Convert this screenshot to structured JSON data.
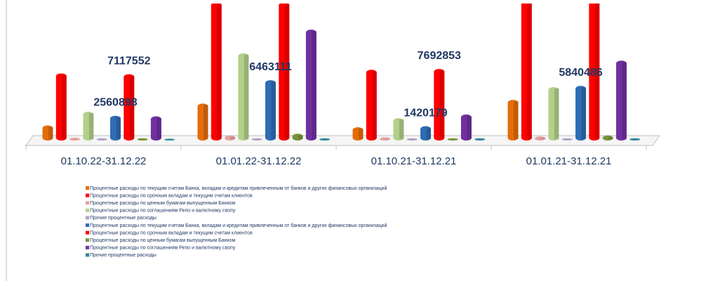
{
  "chart_data": {
    "type": "bar3d",
    "categories": [
      "01.10.22-31.12.22",
      "01.01.22-31.12.22",
      "01.10.21-31.12.21",
      "01.01.21-31.12.21"
    ],
    "series": [
      {
        "name": "Процентные расходы по текущим счетам Банка, вкладам и кредитам привлеченным от банков и других финансовых организаций",
        "color": "#e46c0a",
        "values": [
          1500000,
          3900000,
          1300000,
          4300000
        ]
      },
      {
        "name": "Процентные расходы  по срочным вкладам и текущим счетам клиентов",
        "color": "#ff0000",
        "values": [
          7200000,
          15000000,
          7600000,
          16000000
        ]
      },
      {
        "name": "Процентные расходы  по ценным бумагам выпущенным Банком",
        "color": "#e6a0a0",
        "values": [
          150000,
          400000,
          200000,
          300000
        ]
      },
      {
        "name": "Процентные расходы по соглашениям Репо и валютному свопу",
        "color": "#b3d08a",
        "values": [
          3000000,
          9400000,
          2300000,
          5700000
        ]
      },
      {
        "name": "Прочие процентные расходы",
        "color": "#b3a2c7",
        "values": [
          100000,
          100000,
          100000,
          100000
        ]
      },
      {
        "name": "Процентные расходы по текущим счетам Банка, вкладам и кредитам привлеченным от банков и других финансовых организаций",
        "color": "#2e6db4",
        "values": [
          2560898,
          6463111,
          1420179,
          5840486
        ],
        "data_labels": [
          true,
          true,
          true,
          true
        ]
      },
      {
        "name": "Процентные расходы  по срочным вкладам и текущим счетам клиентов",
        "color": "#ff0000",
        "values": [
          7117552,
          15000000,
          7692853,
          16000000
        ],
        "data_labels": [
          true,
          false,
          true,
          false
        ]
      },
      {
        "name": "Процентные расходы  по ценным бумагам выпущенным Банком",
        "color": "#77933c",
        "values": [
          100000,
          600000,
          100000,
          400000
        ]
      },
      {
        "name": "Процентные расходы по соглашениям Репо и валютному свопу",
        "color": "#7030a0",
        "values": [
          2500000,
          12000000,
          2700000,
          8600000
        ]
      },
      {
        "name": "Прочие процентные расходы",
        "color": "#31859c",
        "values": [
          50000,
          100000,
          100000,
          100000
        ]
      }
    ]
  }
}
